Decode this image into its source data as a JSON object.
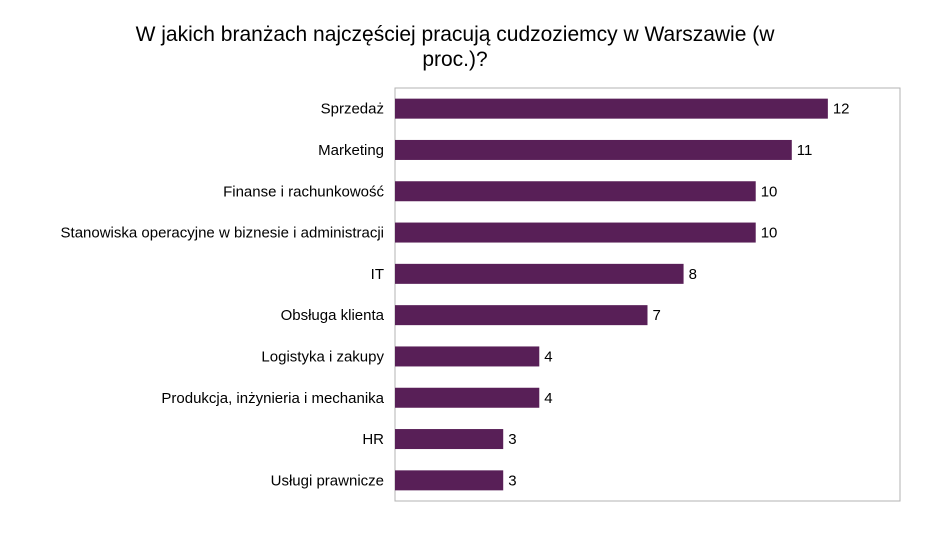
{
  "chart_data": {
    "type": "bar",
    "orientation": "horizontal",
    "title": "W jakich branżach najczęściej pracują cudzoziemcy w Warszawie (w proc.)?",
    "categories": [
      "Sprzedaż",
      "Marketing",
      "Finanse i rachunkowość",
      "Stanowiska operacyjne w biznesie i administracji",
      "IT",
      "Obsługa klienta",
      "Logistyka i zakupy",
      "Produkcja, inżynieria i mechanika",
      "HR",
      "Usługi prawnicze"
    ],
    "values": [
      12,
      11,
      10,
      10,
      8,
      7,
      4,
      4,
      3,
      3
    ],
    "xlim": [
      0,
      14
    ],
    "grid": false,
    "legend": "none",
    "bar_color": "#581f57"
  }
}
